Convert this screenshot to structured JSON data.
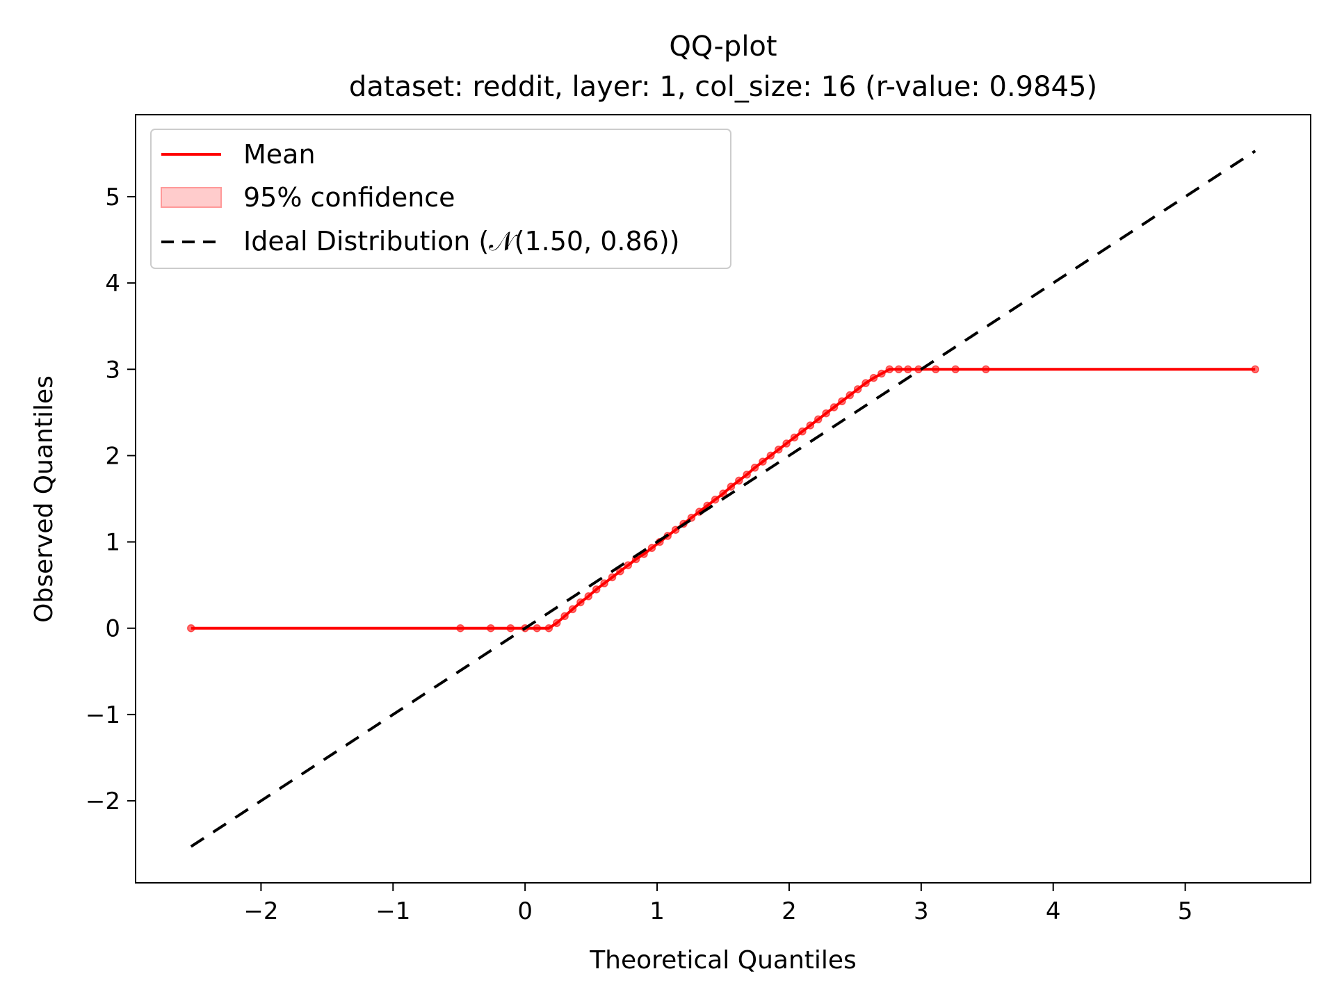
{
  "chart_data": {
    "type": "line",
    "title": "QQ-plot",
    "subtitle": "dataset: reddit, layer: 1, col_size: 16 (r-value: 0.9845)",
    "xlabel": "Theoretical Quantiles",
    "ylabel": "Observed Quantiles",
    "xlim": [
      -2.95,
      5.95
    ],
    "ylim": [
      -2.95,
      5.95
    ],
    "xticks": [
      -2,
      -1,
      0,
      1,
      2,
      3,
      4,
      5
    ],
    "yticks": [
      -2,
      -1,
      0,
      1,
      2,
      3,
      4,
      5
    ],
    "xtick_labels": [
      "−2",
      "−1",
      "0",
      "1",
      "2",
      "3",
      "4",
      "5"
    ],
    "ytick_labels": [
      "−2",
      "−1",
      "0",
      "1",
      "2",
      "3",
      "4",
      "5"
    ],
    "grid": false,
    "legend_position": "upper-left",
    "legend": [
      {
        "label": "Mean",
        "kind": "line",
        "color": "#ff0000"
      },
      {
        "label": "95% confidence",
        "kind": "patch",
        "color": "#ffcccc"
      },
      {
        "label": "Ideal Distribution (𝒩(1.50, 0.86))",
        "kind": "dashed",
        "color": "#000000"
      }
    ],
    "series": [
      {
        "name": "Mean",
        "color": "#ff0000",
        "x": [
          -2.53,
          -0.49,
          -0.26,
          -0.11,
          0.0,
          0.09,
          0.18,
          0.24,
          0.3,
          0.36,
          0.42,
          0.48,
          0.54,
          0.6,
          0.66,
          0.72,
          0.78,
          0.84,
          0.9,
          0.96,
          1.02,
          1.08,
          1.14,
          1.2,
          1.26,
          1.32,
          1.38,
          1.44,
          1.5,
          1.56,
          1.62,
          1.68,
          1.74,
          1.8,
          1.86,
          1.92,
          1.98,
          2.04,
          2.1,
          2.16,
          2.22,
          2.28,
          2.34,
          2.4,
          2.46,
          2.52,
          2.58,
          2.64,
          2.7,
          2.76,
          2.83,
          2.9,
          2.98,
          3.11,
          3.26,
          3.49,
          5.53
        ],
        "y": [
          0,
          0,
          0,
          0,
          0,
          0,
          0,
          0.06,
          0.14,
          0.22,
          0.3,
          0.37,
          0.45,
          0.52,
          0.59,
          0.66,
          0.73,
          0.8,
          0.86,
          0.93,
          1.0,
          1.07,
          1.14,
          1.21,
          1.28,
          1.35,
          1.42,
          1.49,
          1.56,
          1.64,
          1.71,
          1.78,
          1.86,
          1.93,
          2.0,
          2.07,
          2.14,
          2.21,
          2.28,
          2.35,
          2.42,
          2.49,
          2.56,
          2.63,
          2.7,
          2.77,
          2.84,
          2.9,
          2.95,
          3.0,
          3.0,
          3.0,
          3.0,
          3.0,
          3.0,
          3.0,
          3.0
        ]
      },
      {
        "name": "Ideal Distribution (𝒩(1.50, 0.86))",
        "color": "#000000",
        "style": "dashed",
        "x": [
          -2.53,
          5.53
        ],
        "y": [
          -2.53,
          5.53
        ]
      }
    ]
  }
}
